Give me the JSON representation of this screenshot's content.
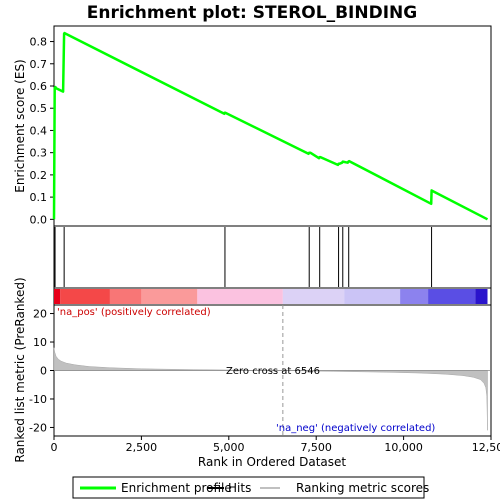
{
  "chart_data": [
    {
      "type": "line",
      "title": "Enrichment plot: STEROL_BINDING",
      "ylabel": "Enrichment score (ES)",
      "xlim": [
        0,
        12500
      ],
      "ylim": [
        -0.03,
        0.87
      ],
      "yticks": [
        0.0,
        0.1,
        0.2,
        0.3,
        0.4,
        0.5,
        0.6,
        0.7,
        0.8
      ],
      "ytick_labels": [
        "0.0",
        "0.1",
        "0.2",
        "0.3",
        "0.4",
        "0.5",
        "0.6",
        "0.7",
        "0.8"
      ],
      "series": [
        {
          "name": "Enrichment profile",
          "color": "#00ff00",
          "x": [
            0,
            20,
            40,
            60,
            260,
            290,
            300,
            4870,
            4880,
            4900,
            7280,
            7300,
            7330,
            7580,
            7600,
            7620,
            8120,
            8140,
            8160,
            8240,
            8260,
            8400,
            8420,
            8440,
            10790,
            10800,
            10820,
            12400
          ],
          "y": [
            0.0,
            0.59,
            0.595,
            0.59,
            0.575,
            0.835,
            0.838,
            0.475,
            0.48,
            0.48,
            0.295,
            0.3,
            0.3,
            0.275,
            0.28,
            0.28,
            0.245,
            0.25,
            0.25,
            0.255,
            0.26,
            0.255,
            0.26,
            0.262,
            0.07,
            0.13,
            0.128,
            0.0
          ]
        }
      ]
    },
    {
      "type": "rug",
      "series_name": "Hits",
      "hits": [
        30,
        290,
        4890,
        7300,
        7600,
        8140,
        8260,
        8430,
        10800
      ],
      "color_bands": [
        {
          "from": 0,
          "to": 180,
          "color": "#e8001a"
        },
        {
          "from": 180,
          "to": 1600,
          "color": "#f44848"
        },
        {
          "from": 1600,
          "to": 2500,
          "color": "#f87676"
        },
        {
          "from": 2500,
          "to": 4100,
          "color": "#fa9a9a"
        },
        {
          "from": 4100,
          "to": 6546,
          "color": "#fbc2e0"
        },
        {
          "from": 6546,
          "to": 8300,
          "color": "#dcd2f6"
        },
        {
          "from": 8300,
          "to": 9900,
          "color": "#cbc4f6"
        },
        {
          "from": 9900,
          "to": 10700,
          "color": "#8c82ee"
        },
        {
          "from": 10700,
          "to": 12050,
          "color": "#5a4ee4"
        },
        {
          "from": 12050,
          "to": 12400,
          "color": "#2a14cc"
        }
      ]
    },
    {
      "type": "area",
      "series_name": "Ranking metric scores",
      "xlabel": "Rank in Ordered Dataset",
      "ylabel": "Ranked list metric (PreRanked)",
      "xlim": [
        0,
        12500
      ],
      "ylim": [
        -23,
        23
      ],
      "xticks": [
        0,
        2500,
        5000,
        7500,
        10000,
        12500
      ],
      "xtick_labels": [
        "0",
        "2,500",
        "5,000",
        "7,500",
        "10,000",
        "12,500"
      ],
      "yticks": [
        -20,
        -10,
        0,
        10,
        20
      ],
      "ytick_labels": [
        "-20",
        "-10",
        "0",
        "10",
        "20"
      ],
      "zero_cross": 6546,
      "zero_cross_label": "Zero cross at 6546",
      "pos_label": "'na_pos' (positively correlated)",
      "neg_label": "'na_neg' (negatively correlated)",
      "x": [
        0,
        20,
        60,
        120,
        200,
        350,
        600,
        1000,
        1600,
        2500,
        4000,
        5500,
        6546,
        8000,
        9500,
        10500,
        11200,
        11700,
        12000,
        12200,
        12300,
        12350,
        12380,
        12400
      ],
      "y": [
        8.0,
        6.5,
        5.0,
        4.0,
        3.3,
        2.6,
        2.0,
        1.4,
        1.0,
        0.6,
        0.3,
        0.1,
        0.0,
        -0.3,
        -0.6,
        -0.9,
        -1.3,
        -1.8,
        -2.4,
        -3.2,
        -4.5,
        -6.0,
        -9.0,
        -21.0
      ]
    }
  ],
  "legend": {
    "items": [
      {
        "label": "Enrichment profile",
        "color": "#00ff00"
      },
      {
        "label": "Hits",
        "color": "#000000"
      },
      {
        "label": "Ranking metric scores",
        "color": "#c0c0c0"
      }
    ]
  }
}
